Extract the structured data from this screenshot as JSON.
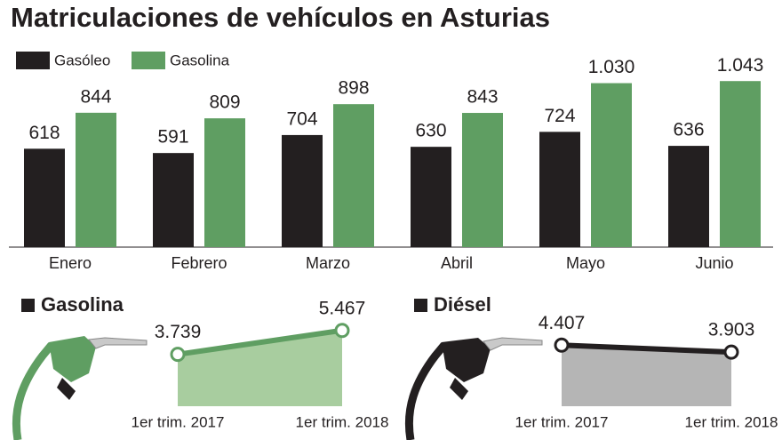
{
  "chart_data": [
    {
      "type": "bar",
      "title": "Matriculaciones de vehículos en Asturias",
      "categories": [
        "Enero",
        "Febrero",
        "Marzo",
        "Abril",
        "Mayo",
        "Junio"
      ],
      "series": [
        {
          "name": "Gasóleo",
          "color": "#231f20",
          "values": [
            618,
            591,
            704,
            630,
            724,
            636
          ]
        },
        {
          "name": "Gasolina",
          "color": "#5f9e62",
          "values": [
            844,
            809,
            898,
            843,
            1030,
            1043
          ],
          "value_labels": [
            "844",
            "809",
            "898",
            "843",
            "1.030",
            "1.043"
          ]
        }
      ],
      "ylim": [
        0,
        1100
      ]
    },
    {
      "type": "line",
      "title": "Gasolina",
      "categories": [
        "1er trim. 2017",
        "1er trim. 2018"
      ],
      "values": [
        3739,
        5467
      ],
      "value_labels": [
        "3.739",
        "5.467"
      ],
      "color": "#5f9e62",
      "fill": "#a8cd9f",
      "ylim": [
        0,
        7500
      ]
    },
    {
      "type": "line",
      "title": "Diésel",
      "categories": [
        "1er trim. 2017",
        "1er trim. 2018"
      ],
      "values": [
        4407,
        3903
      ],
      "value_labels": [
        "4.407",
        "3.903"
      ],
      "color": "#231f20",
      "fill": "#b5b5b5",
      "ylim": [
        0,
        7500
      ]
    }
  ]
}
